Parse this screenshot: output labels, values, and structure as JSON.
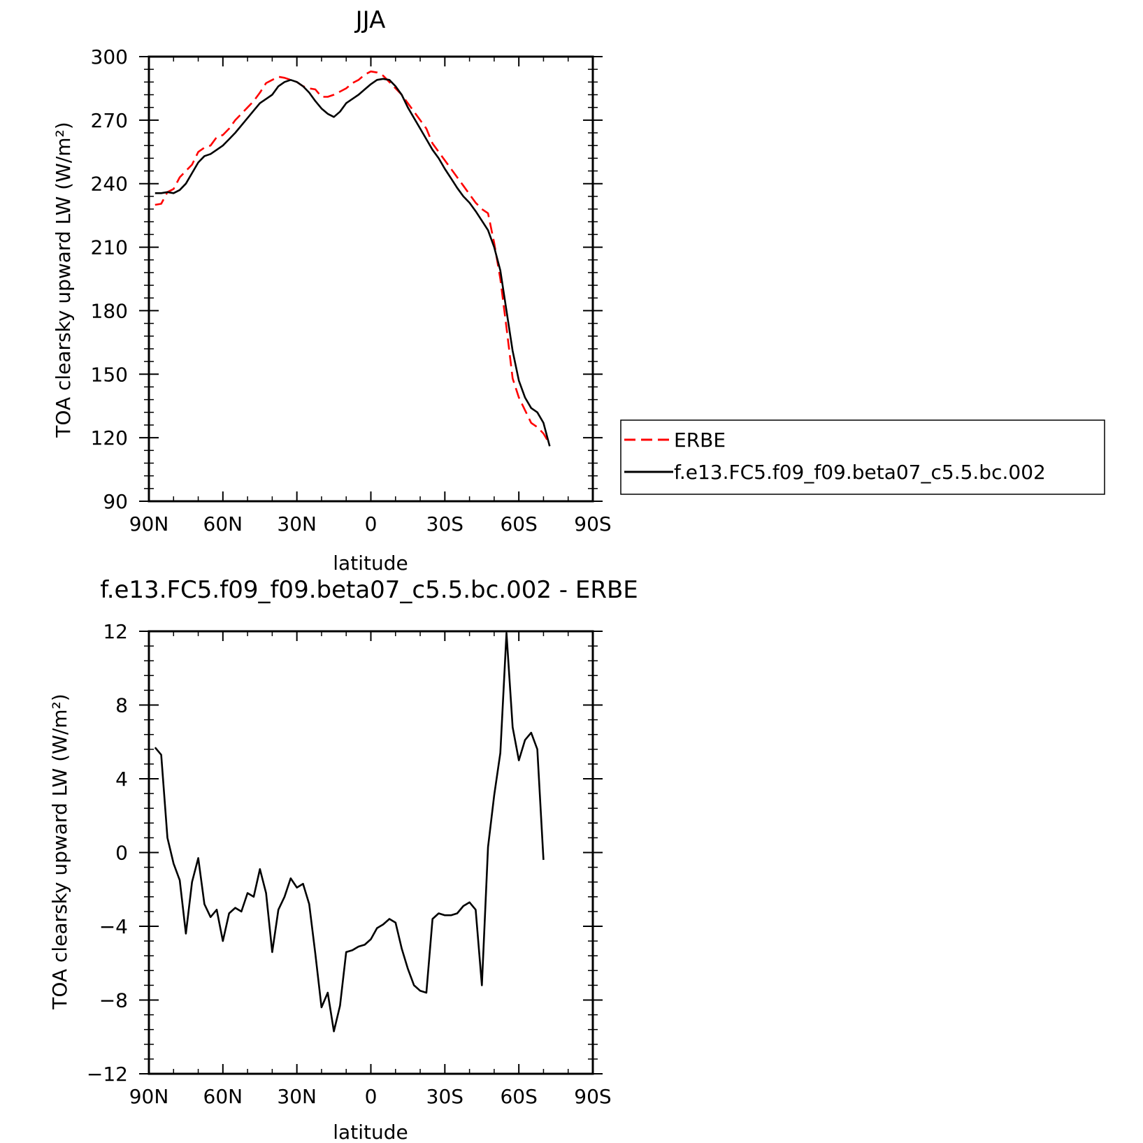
{
  "colors": {
    "obs": "#ff0000",
    "model": "#000000",
    "axis": "#000000",
    "background": "#ffffff"
  },
  "chart_data": [
    {
      "type": "line",
      "title": "JJA",
      "xlabel": "latitude",
      "ylabel": "TOA clearsky upward LW (W/m²)",
      "xlim": [
        90,
        -90
      ],
      "ylim": [
        90,
        300
      ],
      "xticks": [
        {
          "v": 90,
          "label": "90N"
        },
        {
          "v": 60,
          "label": "60N"
        },
        {
          "v": 30,
          "label": "30N"
        },
        {
          "v": 0,
          "label": "0"
        },
        {
          "v": -30,
          "label": "30S"
        },
        {
          "v": -60,
          "label": "60S"
        },
        {
          "v": -90,
          "label": "90S"
        }
      ],
      "yticks": [
        {
          "v": 300,
          "label": "300"
        },
        {
          "v": 270,
          "label": "270"
        },
        {
          "v": 240,
          "label": "240"
        },
        {
          "v": 210,
          "label": "210"
        },
        {
          "v": 180,
          "label": "180"
        },
        {
          "v": 150,
          "label": "150"
        },
        {
          "v": 120,
          "label": "120"
        },
        {
          "v": 90,
          "label": "90"
        }
      ],
      "legend": {
        "position": "right",
        "entries": [
          "ERBE",
          "f.e13.FC5.f09_f09.beta07_c5.5.bc.002"
        ]
      },
      "series": [
        {
          "name": "ERBE",
          "color": "#ff0000",
          "dash": "dashed",
          "points": [
            [
              87.5,
              230
            ],
            [
              85,
              230.5
            ],
            [
              82.5,
              236
            ],
            [
              80,
              237.5
            ],
            [
              77.5,
              243
            ],
            [
              75,
              246
            ],
            [
              72.5,
              249
            ],
            [
              70,
              255
            ],
            [
              67.5,
              257
            ],
            [
              65,
              258
            ],
            [
              62.5,
              262
            ],
            [
              60,
              263
            ],
            [
              57.5,
              266
            ],
            [
              55,
              270
            ],
            [
              52.5,
              273
            ],
            [
              50,
              276
            ],
            [
              47.5,
              279
            ],
            [
              45,
              283
            ],
            [
              42.5,
              287.5
            ],
            [
              40,
              289
            ],
            [
              37.5,
              290.5
            ],
            [
              35,
              290
            ],
            [
              32.5,
              289
            ],
            [
              30,
              288
            ],
            [
              27.5,
              286
            ],
            [
              25,
              285
            ],
            [
              22.5,
              284.5
            ],
            [
              20,
              281
            ],
            [
              17.5,
              281
            ],
            [
              15,
              282
            ],
            [
              12.5,
              283.5
            ],
            [
              10,
              285
            ],
            [
              7.5,
              287.5
            ],
            [
              5,
              289
            ],
            [
              2.5,
              291.5
            ],
            [
              0,
              293
            ],
            [
              -2.5,
              292.5
            ],
            [
              -5,
              291
            ],
            [
              -7.5,
              288
            ],
            [
              -10,
              285
            ],
            [
              -12.5,
              282
            ],
            [
              -15,
              278
            ],
            [
              -17.5,
              274
            ],
            [
              -20,
              270
            ],
            [
              -22.5,
              266
            ],
            [
              -25,
              259
            ],
            [
              -27.5,
              255
            ],
            [
              -30,
              251
            ],
            [
              -32.5,
              247
            ],
            [
              -35,
              243
            ],
            [
              -37.5,
              239
            ],
            [
              -40,
              235
            ],
            [
              -42.5,
              231
            ],
            [
              -45,
              228
            ],
            [
              -47.5,
              226
            ],
            [
              -50,
              212
            ],
            [
              -52.5,
              195
            ],
            [
              -55,
              172
            ],
            [
              -57.5,
              148
            ],
            [
              -60,
              139
            ],
            [
              -62.5,
              133
            ],
            [
              -65,
              127
            ],
            [
              -67.5,
              125
            ],
            [
              -70,
              122
            ],
            [
              -72.5,
              117
            ]
          ]
        },
        {
          "name": "f.e13.FC5.f09_f09.beta07_c5.5.bc.002",
          "color": "#000000",
          "dash": "solid",
          "points": [
            [
              87.5,
              235.5
            ],
            [
              85,
              235.5
            ],
            [
              82.5,
              236
            ],
            [
              80,
              235.5
            ],
            [
              77.5,
              237
            ],
            [
              75,
              240
            ],
            [
              72.5,
              245
            ],
            [
              70,
              250
            ],
            [
              67.5,
              253
            ],
            [
              65,
              254
            ],
            [
              62.5,
              256
            ],
            [
              60,
              258
            ],
            [
              57.5,
              261
            ],
            [
              55,
              264
            ],
            [
              52.5,
              267.5
            ],
            [
              50,
              271
            ],
            [
              47.5,
              274.5
            ],
            [
              45,
              278
            ],
            [
              42.5,
              280
            ],
            [
              40,
              282
            ],
            [
              37.5,
              286
            ],
            [
              35,
              288
            ],
            [
              32.5,
              289
            ],
            [
              30,
              288
            ],
            [
              27.5,
              286
            ],
            [
              25,
              283
            ],
            [
              22.5,
              279
            ],
            [
              20,
              275.5
            ],
            [
              17.5,
              273
            ],
            [
              15,
              271.5
            ],
            [
              12.5,
              274
            ],
            [
              10,
              278
            ],
            [
              7.5,
              280
            ],
            [
              5,
              282
            ],
            [
              2.5,
              284.5
            ],
            [
              0,
              287
            ],
            [
              -2.5,
              289
            ],
            [
              -5,
              289.5
            ],
            [
              -7.5,
              289
            ],
            [
              -10,
              286
            ],
            [
              -12.5,
              282
            ],
            [
              -15,
              276
            ],
            [
              -17.5,
              271
            ],
            [
              -20,
              266
            ],
            [
              -22.5,
              261
            ],
            [
              -25,
              256
            ],
            [
              -27.5,
              252
            ],
            [
              -30,
              247
            ],
            [
              -32.5,
              242.5
            ],
            [
              -35,
              238
            ],
            [
              -37.5,
              234
            ],
            [
              -40,
              231
            ],
            [
              -42.5,
              227
            ],
            [
              -45,
              222.5
            ],
            [
              -47.5,
              218
            ],
            [
              -50,
              210
            ],
            [
              -52.5,
              199
            ],
            [
              -55,
              180
            ],
            [
              -57.5,
              161
            ],
            [
              -60,
              147
            ],
            [
              -62.5,
              139
            ],
            [
              -65,
              134
            ],
            [
              -67.5,
              132
            ],
            [
              -70,
              127
            ],
            [
              -72.5,
              116
            ]
          ]
        }
      ]
    },
    {
      "type": "line",
      "title": "f.e13.FC5.f09_f09.beta07_c5.5.bc.002 - ERBE",
      "xlabel": "latitude",
      "ylabel": "TOA clearsky upward LW (W/m²)",
      "xlim": [
        90,
        -90
      ],
      "ylim": [
        -12,
        12
      ],
      "xticks": [
        {
          "v": 90,
          "label": "90N"
        },
        {
          "v": 60,
          "label": "60N"
        },
        {
          "v": 30,
          "label": "30N"
        },
        {
          "v": 0,
          "label": "0"
        },
        {
          "v": -30,
          "label": "30S"
        },
        {
          "v": -60,
          "label": "60S"
        },
        {
          "v": -90,
          "label": "90S"
        }
      ],
      "yticks": [
        {
          "v": 12,
          "label": "12"
        },
        {
          "v": 8,
          "label": "8"
        },
        {
          "v": 4,
          "label": "4"
        },
        {
          "v": 0,
          "label": "0"
        },
        {
          "v": -4,
          "label": "−4"
        },
        {
          "v": -8,
          "label": "−8"
        },
        {
          "v": -12,
          "label": "−12"
        }
      ],
      "series": [
        {
          "color": "#000000",
          "dash": "solid",
          "points": [
            [
              87.5,
              5.7
            ],
            [
              85,
              5.3
            ],
            [
              82.5,
              0.8
            ],
            [
              80,
              -0.6
            ],
            [
              77.5,
              -1.5
            ],
            [
              75,
              -4.4
            ],
            [
              72.5,
              -1.6
            ],
            [
              70,
              -0.3
            ],
            [
              67.5,
              -2.8
            ],
            [
              65,
              -3.5
            ],
            [
              62.5,
              -3.1
            ],
            [
              60,
              -4.8
            ],
            [
              57.5,
              -3.3
            ],
            [
              55,
              -3.0
            ],
            [
              52.5,
              -3.2
            ],
            [
              50,
              -2.2
            ],
            [
              47.5,
              -2.4
            ],
            [
              45,
              -0.9
            ],
            [
              42.5,
              -2.2
            ],
            [
              40,
              -5.4
            ],
            [
              37.5,
              -3.1
            ],
            [
              35,
              -2.4
            ],
            [
              32.5,
              -1.4
            ],
            [
              30,
              -1.9
            ],
            [
              27.5,
              -1.7
            ],
            [
              25,
              -2.8
            ],
            [
              22.5,
              -5.5
            ],
            [
              20,
              -8.4
            ],
            [
              17.5,
              -7.6
            ],
            [
              15,
              -9.7
            ],
            [
              12.5,
              -8.3
            ],
            [
              10,
              -5.4
            ],
            [
              7.5,
              -5.3
            ],
            [
              5,
              -5.1
            ],
            [
              2.5,
              -5.0
            ],
            [
              0,
              -4.7
            ],
            [
              -2.5,
              -4.1
            ],
            [
              -5,
              -3.9
            ],
            [
              -7.5,
              -3.6
            ],
            [
              -10,
              -3.8
            ],
            [
              -12.5,
              -5.2
            ],
            [
              -15,
              -6.3
            ],
            [
              -17.5,
              -7.2
            ],
            [
              -20,
              -7.5
            ],
            [
              -22.5,
              -7.6
            ],
            [
              -25,
              -3.6
            ],
            [
              -27.5,
              -3.3
            ],
            [
              -30,
              -3.4
            ],
            [
              -32.5,
              -3.4
            ],
            [
              -35,
              -3.3
            ],
            [
              -37.5,
              -2.9
            ],
            [
              -40,
              -2.7
            ],
            [
              -42.5,
              -3.1
            ],
            [
              -45,
              -7.2
            ],
            [
              -47.5,
              0.3
            ],
            [
              -50,
              3.1
            ],
            [
              -52.5,
              5.4
            ],
            [
              -55,
              11.9
            ],
            [
              -57.5,
              6.8
            ],
            [
              -60,
              5.0
            ],
            [
              -62.5,
              6.1
            ],
            [
              -65,
              6.5
            ],
            [
              -67.5,
              5.6
            ],
            [
              -70,
              -0.4
            ]
          ]
        }
      ]
    }
  ]
}
